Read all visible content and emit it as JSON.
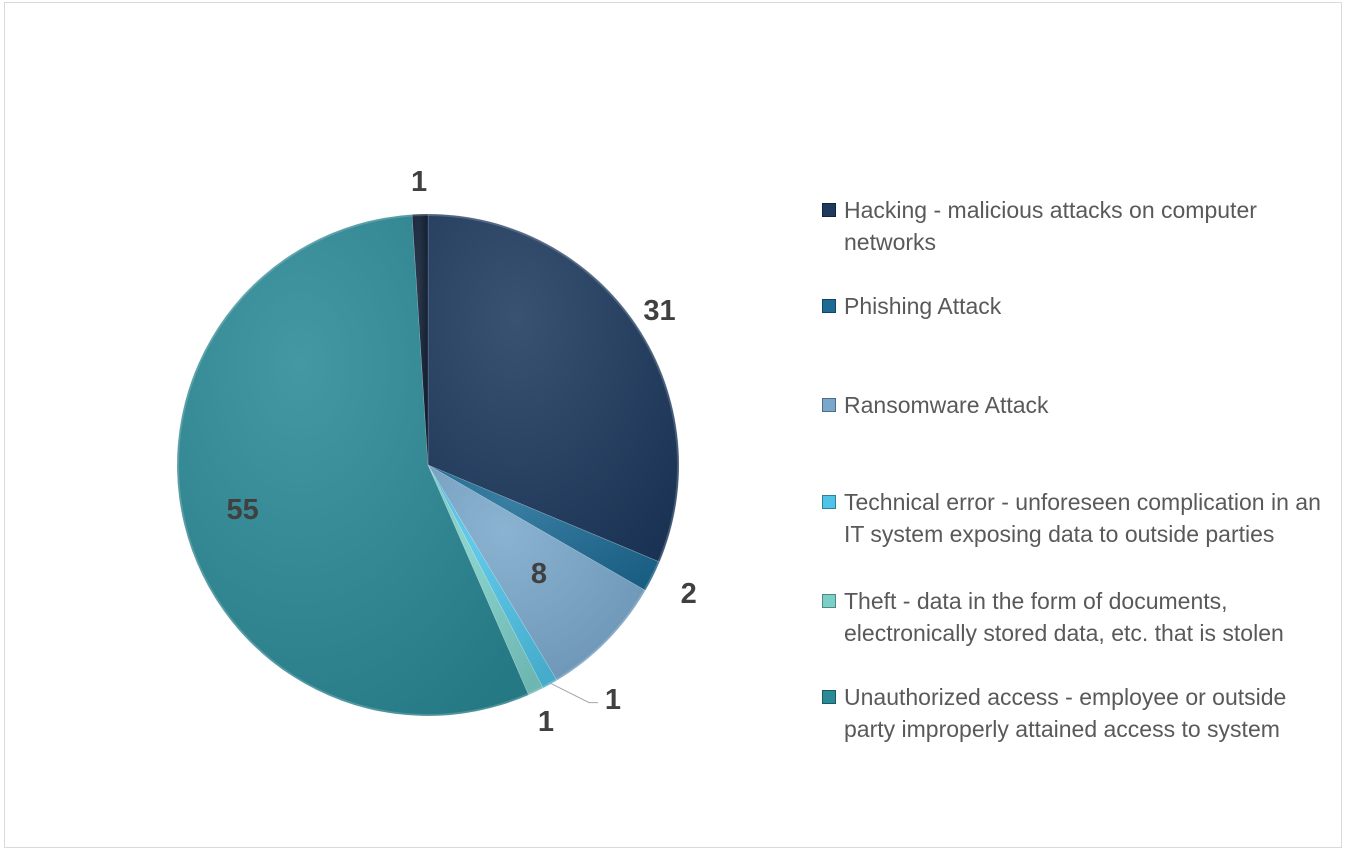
{
  "chart_data": {
    "type": "pie",
    "title": "",
    "legend_position": "right",
    "slices": [
      {
        "label": "Hacking - malicious attacks on computer networks",
        "value": 31,
        "value_label": "31",
        "color": "#1e3a5f"
      },
      {
        "label": "Phishing Attack",
        "value": 2,
        "value_label": "2",
        "color": "#1d6b95"
      },
      {
        "label": "Ransomware Attack",
        "value": 8,
        "value_label": "8",
        "color": "#7aa7cb"
      },
      {
        "label": "Technical error - unforeseen complication in an IT system exposing data to outside parties",
        "value": 1,
        "value_label": "1",
        "color": "#4fc3e8"
      },
      {
        "label": "Theft - data in the form of documents, electronically stored data, etc. that is stolen",
        "value": 1,
        "value_label": "1",
        "color": "#7ccfc9"
      },
      {
        "label": "Unauthorized access - employee or outside party improperly attained access to system",
        "value": 55,
        "value_label": "55",
        "color": "#2a8a96"
      },
      {
        "label": "",
        "value": 1,
        "value_label": "1",
        "color": "#0f1d33"
      }
    ]
  }
}
